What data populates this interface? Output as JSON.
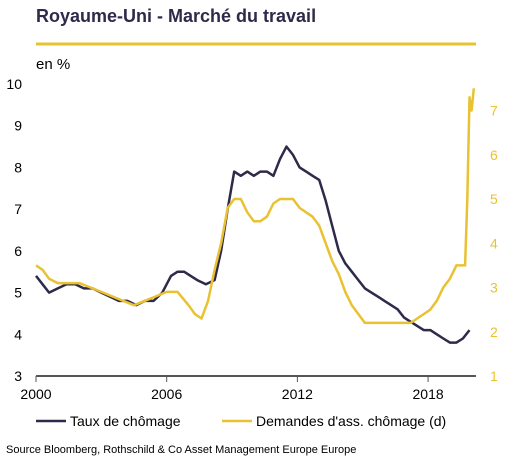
{
  "title": "Royaume-Uni - Marché du travail",
  "unit_label": "en %",
  "source": "Source Bloomberg, Rothschild  & Co Asset Management Europe Europe",
  "colors": {
    "unemployment": "#2d2a4a",
    "claimant": "#e9c232",
    "axis": "#555555"
  },
  "chart_data": {
    "type": "line",
    "x_ticks": [
      "2000",
      "2006",
      "2012",
      "2018"
    ],
    "xlim": [
      2000,
      2020.2
    ],
    "y_left": {
      "ticks": [
        "3",
        "4",
        "5",
        "6",
        "7",
        "8",
        "9",
        "10"
      ],
      "ylim": [
        3,
        10
      ]
    },
    "y_right": {
      "ticks": [
        "1",
        "2",
        "3",
        "4",
        "5",
        "6",
        "7"
      ],
      "ylim": [
        1,
        7.6
      ]
    },
    "legend_position": "bottom",
    "series": [
      {
        "name": "Taux de chômage",
        "axis": "left",
        "x": [
          2000,
          2000.3,
          2000.6,
          2001,
          2001.4,
          2001.8,
          2002.2,
          2002.6,
          2003,
          2003.4,
          2003.8,
          2004.2,
          2004.6,
          2005,
          2005.4,
          2005.8,
          2006.2,
          2006.5,
          2006.8,
          2007.1,
          2007.4,
          2007.8,
          2008.2,
          2008.5,
          2008.8,
          2009.1,
          2009.4,
          2009.7,
          2010,
          2010.3,
          2010.6,
          2010.9,
          2011.2,
          2011.5,
          2011.8,
          2012.1,
          2012.4,
          2012.7,
          2013,
          2013.3,
          2013.6,
          2013.9,
          2014.2,
          2014.5,
          2014.8,
          2015.1,
          2015.4,
          2015.7,
          2016,
          2016.3,
          2016.6,
          2016.9,
          2017.2,
          2017.5,
          2017.8,
          2018.1,
          2018.4,
          2018.7,
          2019,
          2019.3,
          2019.6,
          2019.9
        ],
        "y": [
          5.4,
          5.2,
          5.0,
          5.1,
          5.2,
          5.2,
          5.1,
          5.1,
          5.0,
          4.9,
          4.8,
          4.8,
          4.7,
          4.8,
          4.8,
          5.0,
          5.4,
          5.5,
          5.5,
          5.4,
          5.3,
          5.2,
          5.3,
          6.0,
          7.0,
          7.9,
          7.8,
          7.9,
          7.8,
          7.9,
          7.9,
          7.8,
          8.2,
          8.5,
          8.3,
          8.0,
          7.9,
          7.8,
          7.7,
          7.2,
          6.6,
          6.0,
          5.7,
          5.5,
          5.3,
          5.1,
          5.0,
          4.9,
          4.8,
          4.7,
          4.6,
          4.4,
          4.3,
          4.2,
          4.1,
          4.1,
          4.0,
          3.9,
          3.8,
          3.8,
          3.9,
          4.1
        ]
      },
      {
        "name": "Demandes d'ass. chômage (d)",
        "axis": "right",
        "x": [
          2000,
          2000.3,
          2000.6,
          2001,
          2001.5,
          2002,
          2002.5,
          2003,
          2003.5,
          2004,
          2004.5,
          2005,
          2005.5,
          2006,
          2006.5,
          2007,
          2007.3,
          2007.6,
          2007.9,
          2008.2,
          2008.5,
          2008.8,
          2009.1,
          2009.4,
          2009.7,
          2010,
          2010.3,
          2010.6,
          2010.9,
          2011.2,
          2011.5,
          2011.8,
          2012.1,
          2012.4,
          2012.7,
          2013,
          2013.3,
          2013.6,
          2013.9,
          2014.2,
          2014.5,
          2014.8,
          2015.1,
          2015.4,
          2015.7,
          2016,
          2016.3,
          2016.6,
          2016.9,
          2017.2,
          2017.5,
          2017.8,
          2018.1,
          2018.4,
          2018.7,
          2019,
          2019.3,
          2019.5,
          2019.7,
          2019.8,
          2019.9,
          2020,
          2020.1
        ],
        "y": [
          3.5,
          3.4,
          3.2,
          3.1,
          3.1,
          3.1,
          3.0,
          2.9,
          2.8,
          2.7,
          2.6,
          2.7,
          2.8,
          2.9,
          2.9,
          2.6,
          2.4,
          2.3,
          2.7,
          3.4,
          4.0,
          4.8,
          5.0,
          5.0,
          4.7,
          4.5,
          4.5,
          4.6,
          4.9,
          5.0,
          5.0,
          5.0,
          4.8,
          4.7,
          4.6,
          4.4,
          4.0,
          3.6,
          3.3,
          2.9,
          2.6,
          2.4,
          2.2,
          2.2,
          2.2,
          2.2,
          2.2,
          2.2,
          2.2,
          2.2,
          2.3,
          2.4,
          2.5,
          2.7,
          3.0,
          3.2,
          3.5,
          3.5,
          3.5,
          5.0,
          7.3,
          7.0,
          7.5
        ]
      }
    ]
  }
}
